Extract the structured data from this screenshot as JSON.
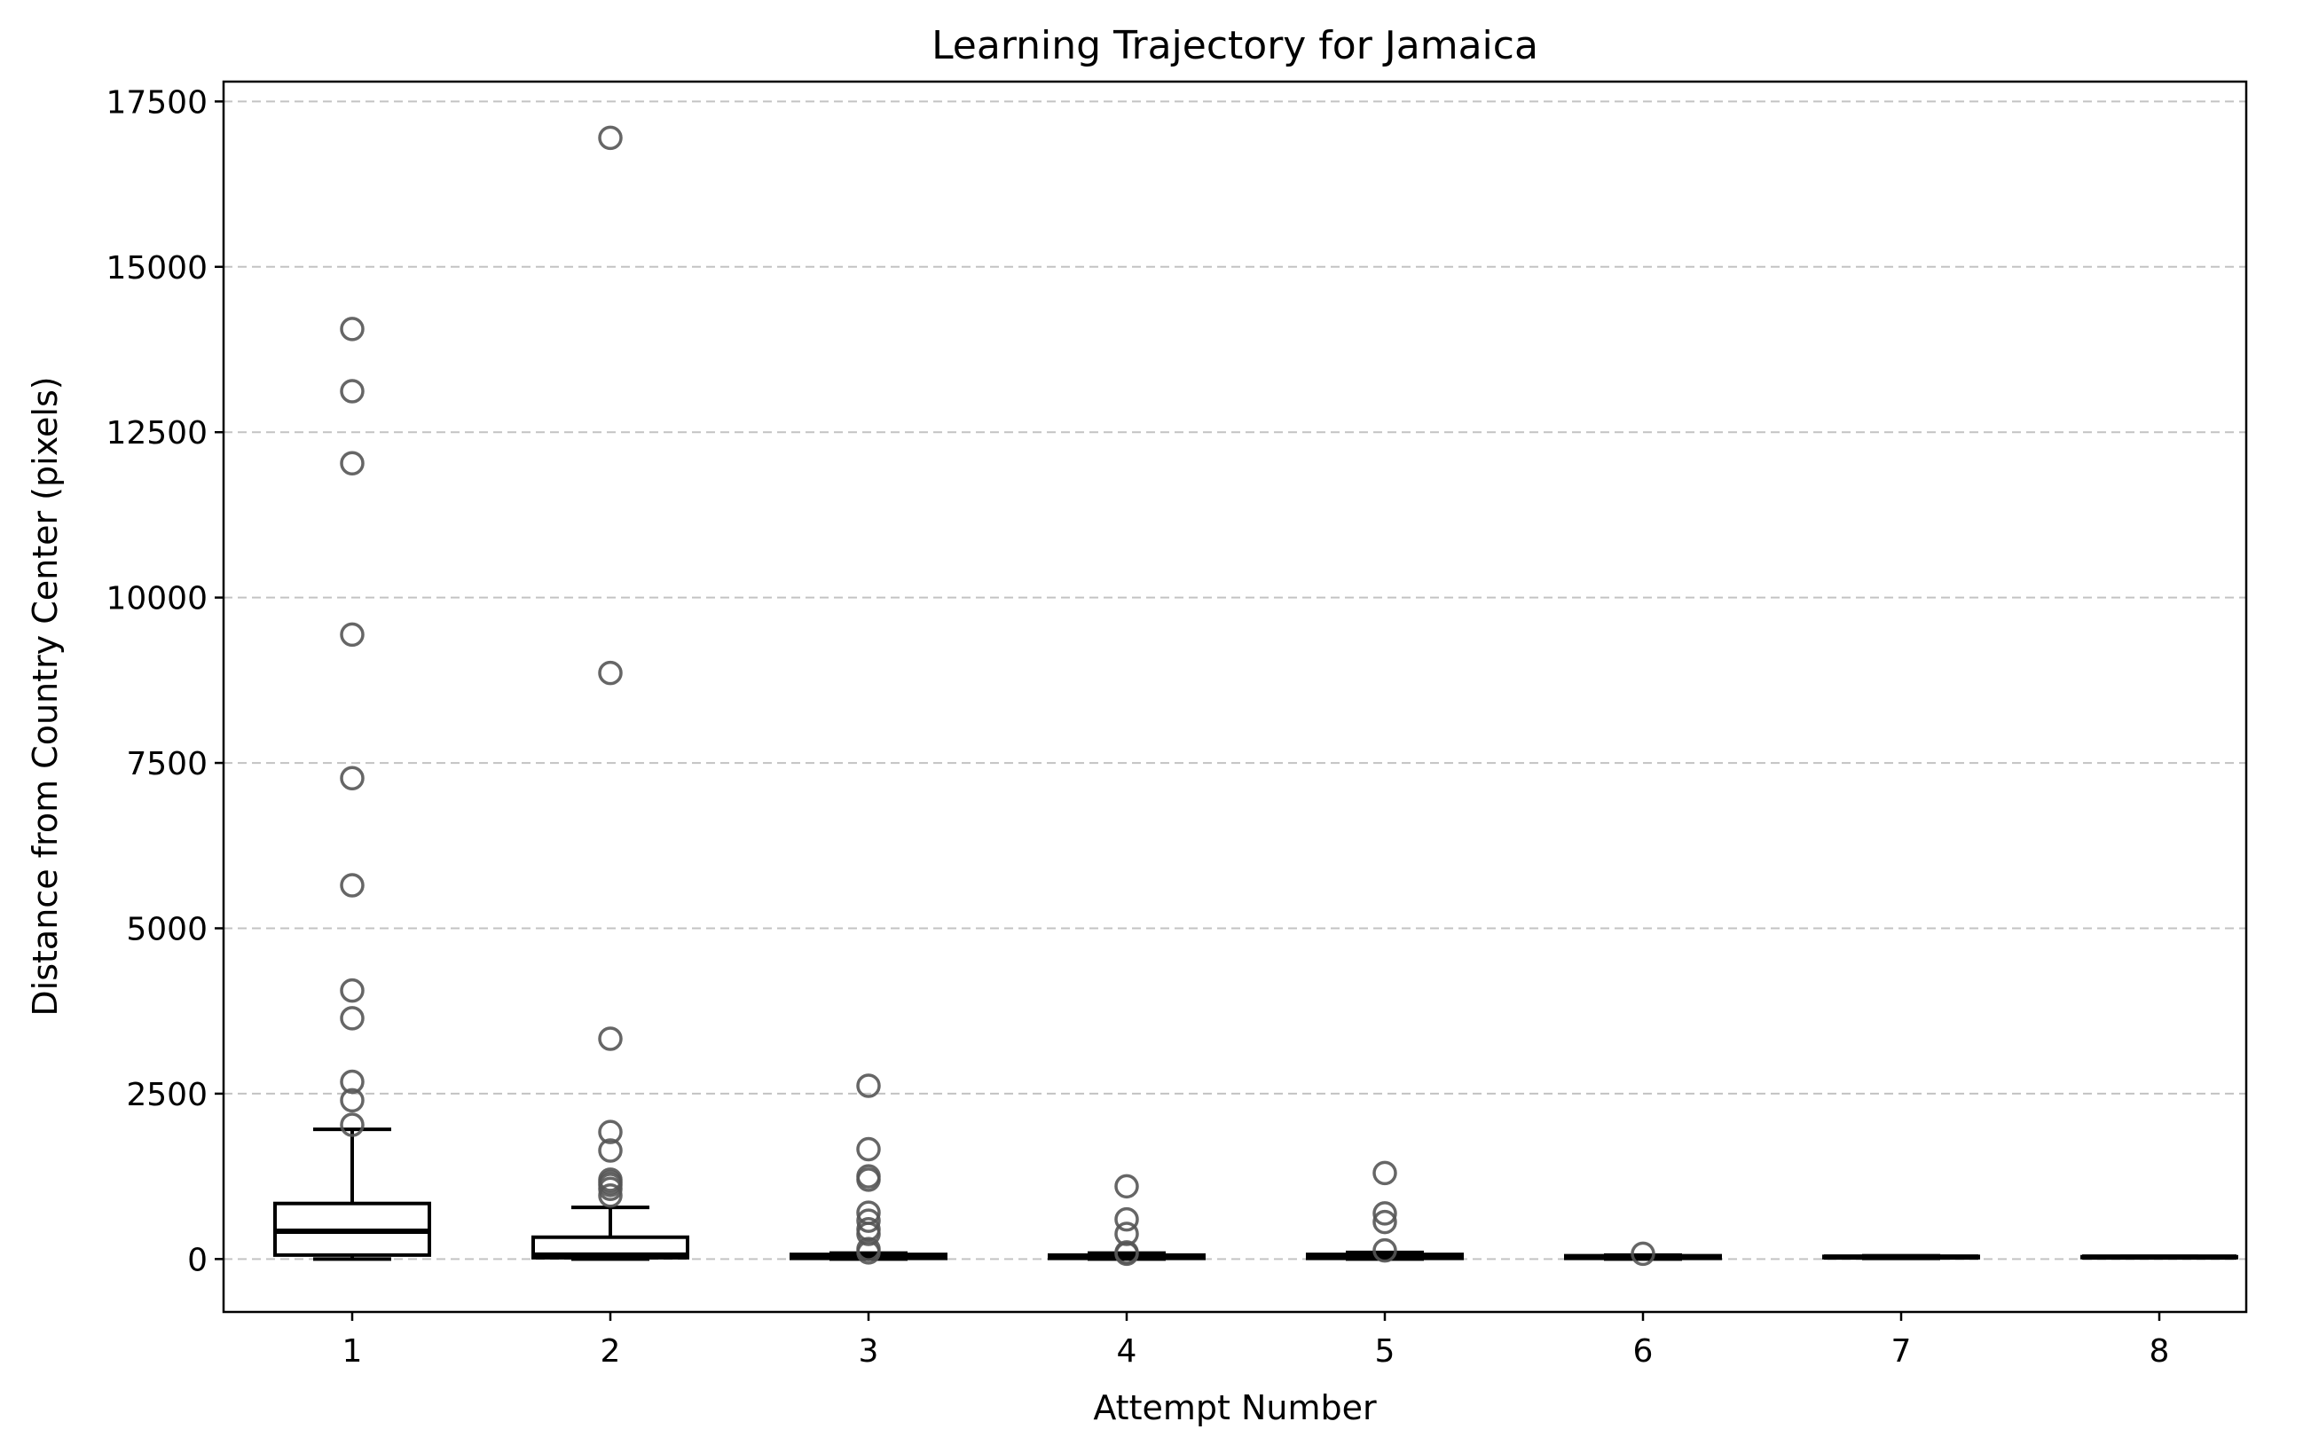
{
  "chart_data": {
    "type": "box",
    "title": "Learning Trajectory for Jamaica",
    "xlabel": "Attempt Number",
    "ylabel": "Distance from Country Center (pixels)",
    "ylim": [
      -800,
      17800
    ],
    "yticks": [
      0,
      2500,
      5000,
      7500,
      10000,
      12500,
      15000,
      17500
    ],
    "grid": "y-dashed",
    "categories": [
      "1",
      "2",
      "3",
      "4",
      "5",
      "6",
      "7",
      "8"
    ],
    "boxes": [
      {
        "category": "1",
        "whisker_low": 0,
        "q1": 60,
        "median": 420,
        "q3": 840,
        "whisker_high": 1960,
        "outliers": [
          2030,
          2400,
          2680,
          3640,
          4060,
          5650,
          7270,
          9440,
          12030,
          13120,
          14060
        ]
      },
      {
        "category": "2",
        "whisker_low": 0,
        "q1": 20,
        "median": 60,
        "q3": 330,
        "whisker_high": 780,
        "outliers": [
          960,
          1060,
          1120,
          1160,
          1200,
          1640,
          1920,
          3330,
          8860,
          16950
        ]
      },
      {
        "category": "3",
        "whisker_low": 0,
        "q1": 10,
        "median": 30,
        "q3": 70,
        "whisker_high": 90,
        "outliers": [
          100,
          150,
          380,
          450,
          580,
          700,
          1200,
          1250,
          1660,
          2620
        ]
      },
      {
        "category": "4",
        "whisker_low": 0,
        "q1": 10,
        "median": 30,
        "q3": 60,
        "whisker_high": 90,
        "outliers": [
          80,
          100,
          380,
          600,
          1100
        ]
      },
      {
        "category": "5",
        "whisker_low": 0,
        "q1": 10,
        "median": 40,
        "q3": 70,
        "whisker_high": 100,
        "outliers": [
          130,
          560,
          690,
          1300
        ]
      },
      {
        "category": "6",
        "whisker_low": 0,
        "q1": 10,
        "median": 25,
        "q3": 50,
        "whisker_high": 60,
        "outliers": [
          80
        ]
      },
      {
        "category": "7",
        "whisker_low": 10,
        "q1": 20,
        "median": 30,
        "q3": 40,
        "whisker_high": 50,
        "outliers": []
      },
      {
        "category": "8",
        "whisker_low": 20,
        "q1": 25,
        "median": 30,
        "q3": 35,
        "whisker_high": 40,
        "outliers": []
      }
    ]
  }
}
